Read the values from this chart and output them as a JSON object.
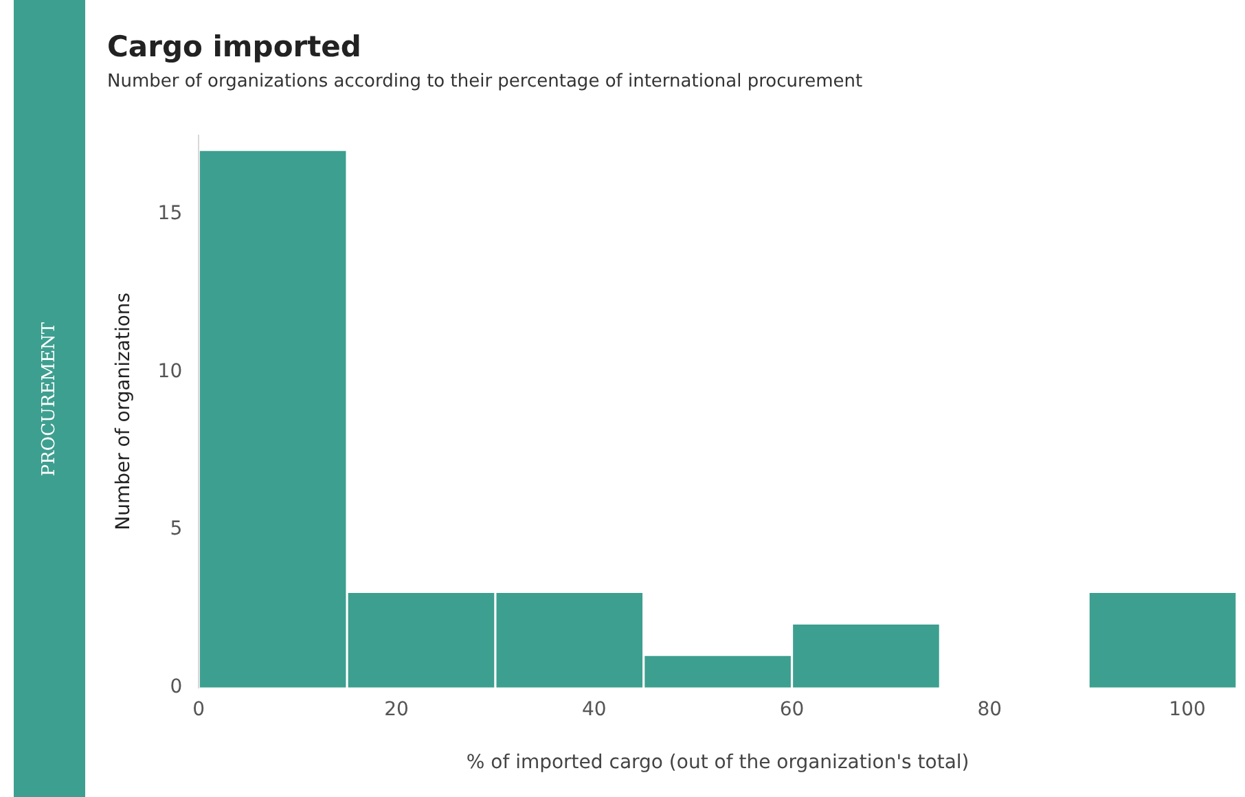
{
  "chart_data": {
    "type": "histogram",
    "title": "Cargo imported",
    "subtitle": "Number of organizations according to their percentage of international procurement",
    "xlabel": "% of imported cargo (out of the organization's total)",
    "ylabel": "Number of organizations",
    "annotations": [
      "PROCUREMENT"
    ],
    "bins": [
      0,
      15,
      30,
      45,
      60,
      75,
      90,
      105
    ],
    "values": [
      17,
      3,
      3,
      1,
      2,
      0,
      3
    ],
    "color": "#3d9f8f",
    "xlim": [
      0,
      105
    ],
    "xticks": [
      0,
      20,
      40,
      60,
      80,
      100
    ],
    "ylim": [
      0,
      17.5
    ],
    "yticks": [
      0,
      5,
      10,
      15
    ],
    "grid": false,
    "legend": false
  }
}
